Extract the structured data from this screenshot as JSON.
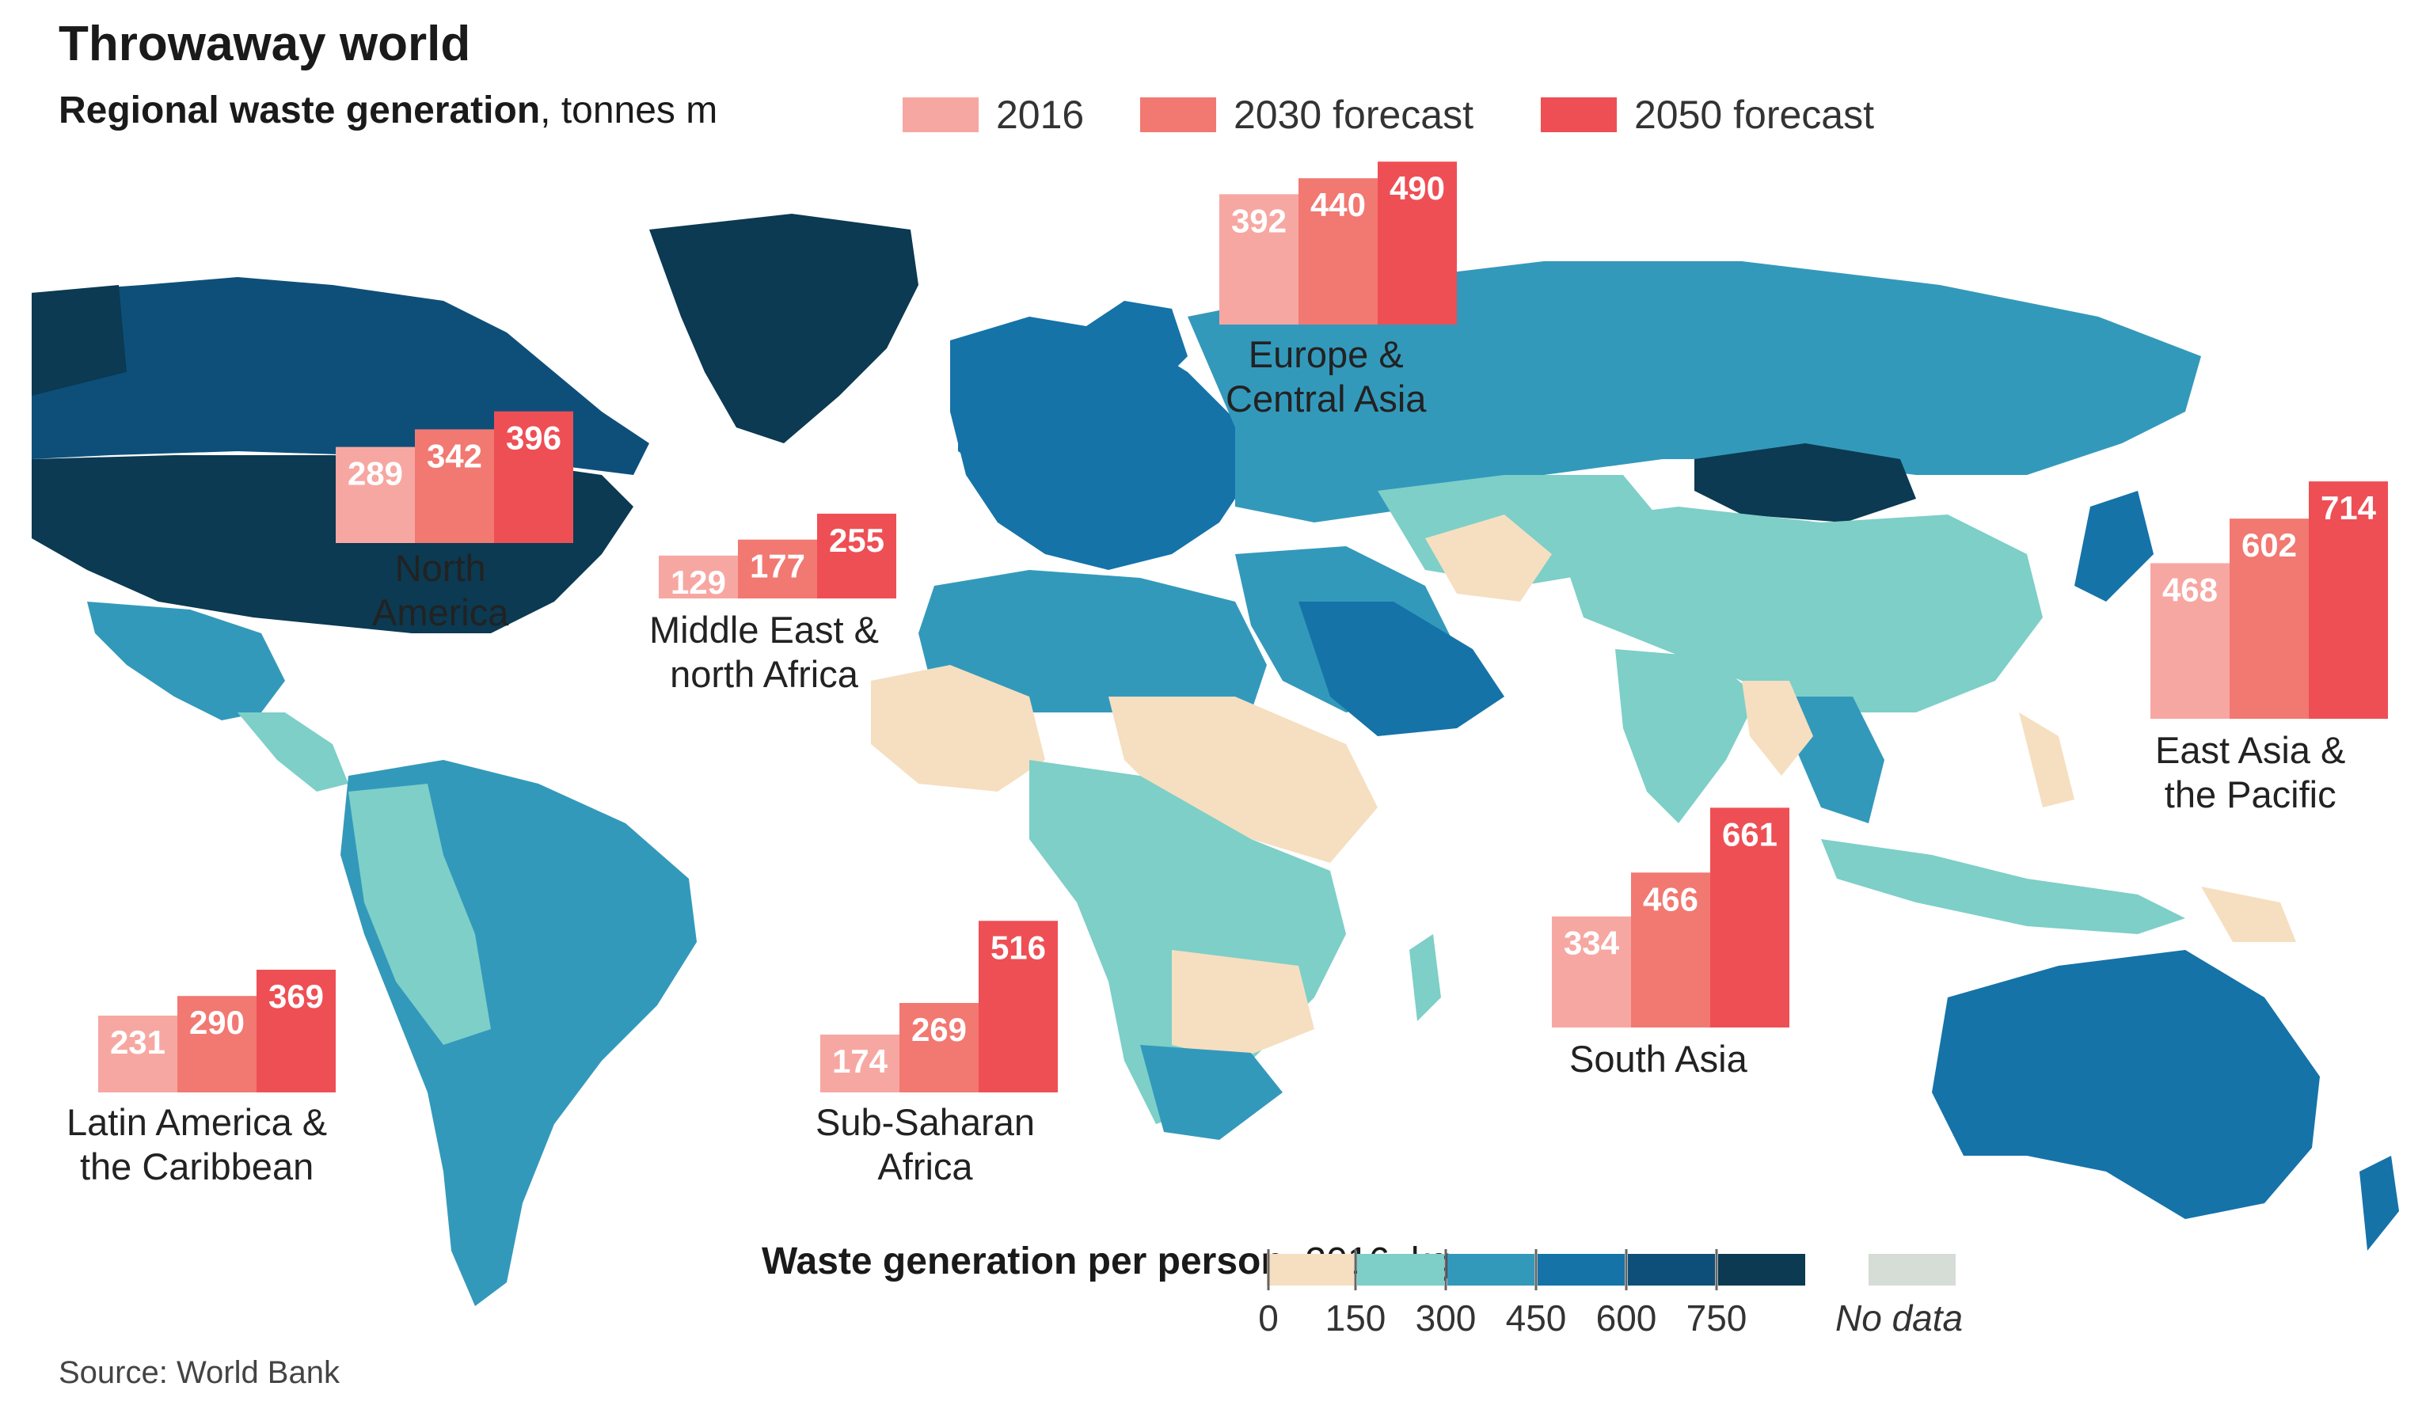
{
  "title": "Throwaway world",
  "subtitle_bold": "Regional waste generation",
  "subtitle_rest": ", tonnes m",
  "bar_legend": [
    {
      "label": "2016",
      "color": "#f7a7a2"
    },
    {
      "label": "2030 forecast",
      "color": "#f27872"
    },
    {
      "label": "2050 forecast",
      "color": "#ee4f55"
    }
  ],
  "chart_data": {
    "type": "bar",
    "title": "Regional waste generation, tonnes m",
    "categories": [
      "2016",
      "2030 forecast",
      "2050 forecast"
    ],
    "regions": [
      {
        "name": "North America",
        "label_lines": [
          "North",
          "America"
        ],
        "values": [
          289,
          342,
          396
        ]
      },
      {
        "name": "Middle East & north Africa",
        "label_lines": [
          "Middle East &",
          "north Africa"
        ],
        "values": [
          129,
          177,
          255
        ]
      },
      {
        "name": "Europe & Central Asia",
        "label_lines": [
          "Europe &",
          "Central Asia"
        ],
        "values": [
          392,
          440,
          490
        ]
      },
      {
        "name": "East Asia & the Pacific",
        "label_lines": [
          "East Asia &",
          "the Pacific"
        ],
        "values": [
          468,
          602,
          714
        ]
      },
      {
        "name": "South Asia",
        "label_lines": [
          "South Asia"
        ],
        "values": [
          334,
          466,
          661
        ]
      },
      {
        "name": "Sub-Saharan Africa",
        "label_lines": [
          "Sub-Saharan",
          "Africa"
        ],
        "values": [
          174,
          269,
          516
        ]
      },
      {
        "name": "Latin America & the Caribbean",
        "label_lines": [
          "Latin America &",
          "the Caribbean"
        ],
        "values": [
          231,
          290,
          369
        ]
      }
    ]
  },
  "choropleth_scale": {
    "title_bold": "Waste generation per person",
    "title_rest": ", 2016, kg",
    "ticks": [
      "0",
      "150",
      "300",
      "450",
      "600",
      "750"
    ],
    "colors": [
      "#f5dfc0",
      "#7dcfc8",
      "#3399bb",
      "#1573a8",
      "#0e4f7a",
      "#0b3a52"
    ],
    "no_data_label": "No data",
    "no_data_color": "#d6dcd6"
  },
  "source": "Source: World Bank"
}
